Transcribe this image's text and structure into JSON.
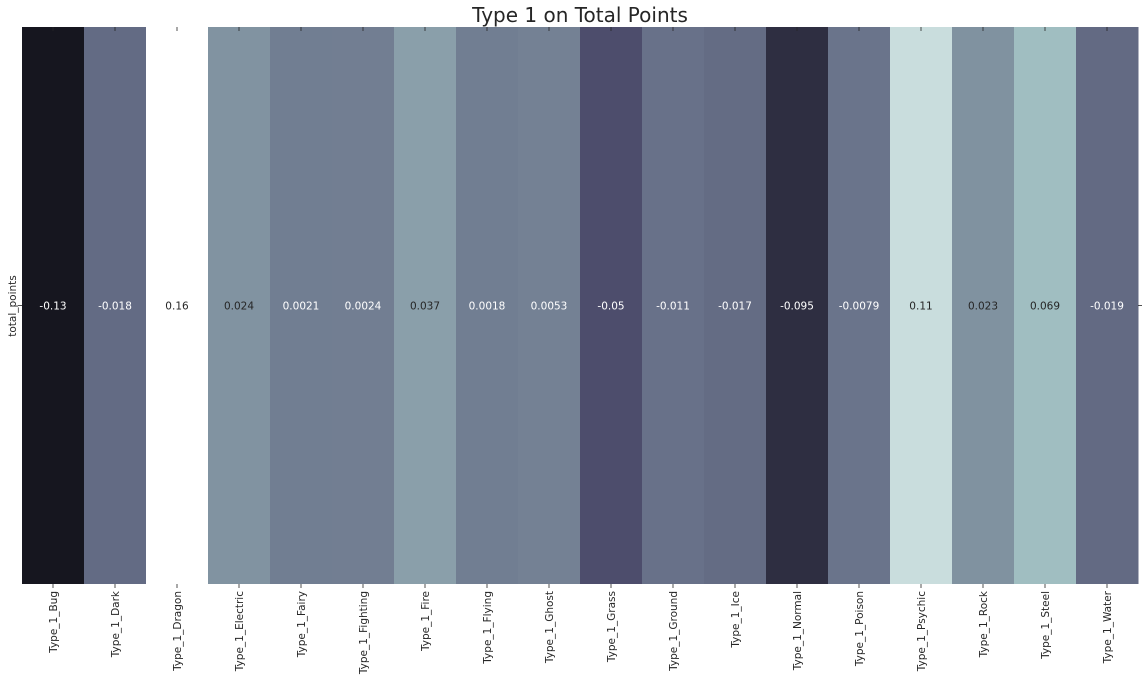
{
  "chart_data": {
    "type": "heatmap",
    "title": "Type 1 on Total Points",
    "xlabel": "",
    "ylabel": "",
    "rows": [
      "total_points"
    ],
    "categories": [
      "Type_1_Bug",
      "Type_1_Dark",
      "Type_1_Dragon",
      "Type_1_Electric",
      "Type_1_Fairy",
      "Type_1_Fighting",
      "Type_1_Fire",
      "Type_1_Flying",
      "Type_1_Ghost",
      "Type_1_Grass",
      "Type_1_Ground",
      "Type_1_Ice",
      "Type_1_Normal",
      "Type_1_Poison",
      "Type_1_Psychic",
      "Type_1_Rock",
      "Type_1_Steel",
      "Type_1_Water"
    ],
    "values": [
      -0.13,
      -0.018,
      0.16,
      0.024,
      0.0021,
      0.0024,
      0.037,
      0.0018,
      0.0053,
      -0.05,
      -0.011,
      -0.017,
      -0.095,
      -0.0079,
      0.11,
      0.023,
      0.069,
      -0.019
    ],
    "value_labels": [
      "-0.13",
      "-0.018",
      "0.16",
      "0.024",
      "0.0021",
      "0.0024",
      "0.037",
      "0.0018",
      "0.0053",
      "-0.05",
      "-0.011",
      "-0.017",
      "-0.095",
      "-0.0079",
      "0.11",
      "0.023",
      "0.069",
      "-0.019"
    ],
    "colormap": "bone",
    "colorbar": false,
    "grid": false
  }
}
